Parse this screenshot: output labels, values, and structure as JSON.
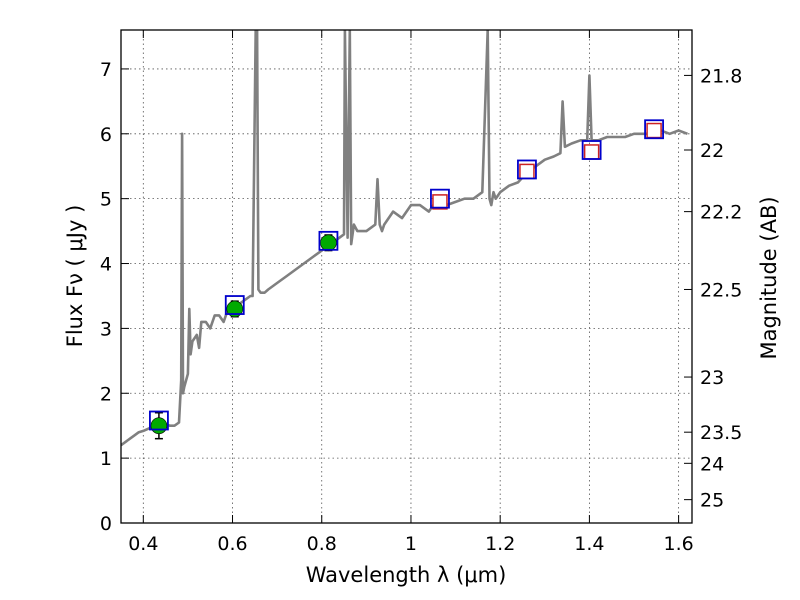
{
  "chart_data": {
    "type": "line",
    "title": "",
    "xlabel": "Wavelength  λ (μm)",
    "ylabel": "Flux  Fν  ( μJy )",
    "ylabel_right": "Magnitude (AB)",
    "xlim": [
      0.35,
      1.63
    ],
    "ylim": [
      0,
      7.6
    ],
    "grid": true,
    "x_ticks": [
      0.4,
      0.6,
      0.8,
      1.0,
      1.2,
      1.4,
      1.6
    ],
    "x_tick_labels": [
      "0.4",
      "0.6",
      "0.8",
      "1",
      "1.2",
      "1.4",
      "1.6"
    ],
    "y_ticks": [
      0,
      1,
      2,
      3,
      4,
      5,
      6,
      7
    ],
    "y_tick_labels": [
      "0",
      "1",
      "2",
      "3",
      "4",
      "5",
      "6",
      "7"
    ],
    "right_axis": {
      "ticks": [
        {
          "label": "21.8",
          "flux": 6.9
        },
        {
          "label": "22",
          "flux": 5.75
        },
        {
          "label": "22.2",
          "flux": 4.8
        },
        {
          "label": "22.5",
          "flux": 3.6
        },
        {
          "label": "23",
          "flux": 2.25
        },
        {
          "label": "23.5",
          "flux": 1.4
        },
        {
          "label": "24",
          "flux": 0.92
        },
        {
          "label": "25",
          "flux": 0.36
        }
      ]
    },
    "colors": {
      "spectrum": "#808080",
      "model_box": "#0000cc",
      "observed_point": "#00aa00",
      "nir_marker": "#cc2222",
      "grid": "#555555"
    },
    "series": [
      {
        "type": "line",
        "color": "#808080",
        "x": [
          0.35,
          0.36,
          0.37,
          0.38,
          0.39,
          0.4,
          0.41,
          0.42,
          0.43,
          0.44,
          0.45,
          0.46,
          0.47,
          0.48,
          0.485,
          0.487,
          0.489,
          0.492,
          0.5,
          0.503,
          0.506,
          0.51,
          0.52,
          0.525,
          0.53,
          0.54,
          0.55,
          0.56,
          0.57,
          0.58,
          0.59,
          0.6,
          0.61,
          0.62,
          0.63,
          0.64,
          0.645,
          0.652,
          0.655,
          0.658,
          0.663,
          0.672,
          0.68,
          0.7,
          0.72,
          0.74,
          0.76,
          0.78,
          0.8,
          0.82,
          0.84,
          0.85,
          0.852,
          0.858,
          0.863,
          0.866,
          0.872,
          0.88,
          0.9,
          0.92,
          0.925,
          0.93,
          0.935,
          0.94,
          0.96,
          0.98,
          1.0,
          1.02,
          1.04,
          1.06,
          1.08,
          1.1,
          1.12,
          1.14,
          1.16,
          1.172,
          1.176,
          1.18,
          1.185,
          1.19,
          1.2,
          1.22,
          1.24,
          1.26,
          1.28,
          1.3,
          1.32,
          1.335,
          1.34,
          1.345,
          1.36,
          1.38,
          1.395,
          1.4,
          1.405,
          1.42,
          1.44,
          1.46,
          1.48,
          1.5,
          1.52,
          1.54,
          1.56,
          1.58,
          1.6,
          1.62
        ],
        "y": [
          1.2,
          1.25,
          1.3,
          1.35,
          1.4,
          1.42,
          1.45,
          1.48,
          1.5,
          1.5,
          1.52,
          1.5,
          1.5,
          1.55,
          2.2,
          6.0,
          2.0,
          2.1,
          2.3,
          3.3,
          2.6,
          2.8,
          2.9,
          2.7,
          3.1,
          3.1,
          3.0,
          3.2,
          3.2,
          3.1,
          3.3,
          3.3,
          3.35,
          3.4,
          3.45,
          3.5,
          3.5,
          7.6,
          7.6,
          3.6,
          3.55,
          3.55,
          3.6,
          3.7,
          3.8,
          3.9,
          4.0,
          4.1,
          4.2,
          4.3,
          4.4,
          4.45,
          7.6,
          4.4,
          7.6,
          4.3,
          4.6,
          4.5,
          4.5,
          4.6,
          5.3,
          4.6,
          4.5,
          4.6,
          4.8,
          4.7,
          4.9,
          4.9,
          4.8,
          5.0,
          4.9,
          4.95,
          5.0,
          5.0,
          5.1,
          7.6,
          5.0,
          4.9,
          5.1,
          5.0,
          5.1,
          5.2,
          5.25,
          5.4,
          5.5,
          5.6,
          5.65,
          5.7,
          6.5,
          5.8,
          5.85,
          5.9,
          5.9,
          6.9,
          5.9,
          5.9,
          5.95,
          5.95,
          5.95,
          6.0,
          6.0,
          6.0,
          6.05,
          6.0,
          6.05,
          6.0
        ]
      },
      {
        "type": "observed",
        "color": "#00aa00",
        "x": [
          0.435,
          0.605,
          0.815
        ],
        "y": [
          1.5,
          3.3,
          4.32
        ],
        "err": [
          0.2,
          0.12,
          0.12
        ]
      },
      {
        "type": "nir-markers",
        "color": "#cc2222",
        "x": [
          1.065,
          1.26,
          1.405,
          1.545
        ],
        "y": [
          4.95,
          5.42,
          5.72,
          6.05
        ]
      },
      {
        "type": "model-boxes",
        "color": "#0000cc",
        "x": [
          0.435,
          0.605,
          0.815,
          1.065,
          1.26,
          1.405,
          1.545
        ],
        "y": [
          1.58,
          3.36,
          4.35,
          5.0,
          5.45,
          5.75,
          6.07
        ]
      }
    ]
  }
}
